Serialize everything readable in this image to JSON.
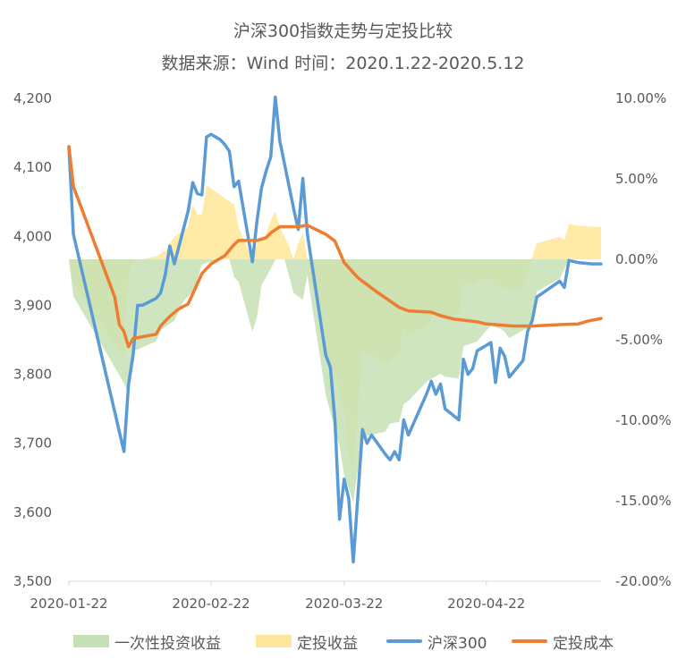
{
  "title": {
    "line1": "沪深300指数走势与定投比较",
    "line2": "数据来源：Wind 时间：2020.1.22-2020.5.12"
  },
  "colors": {
    "index_line": "#5B9BD5",
    "cost_line": "#ED7D31",
    "lump_sum_area": "#C5E0B4",
    "dca_area": "#FFE699",
    "axis": "#D9D9D9"
  },
  "legend": {
    "lump_sum": "一次性投资收益",
    "dca": "定投收益",
    "index": "沪深300",
    "cost": "定投成本"
  },
  "chart_data": {
    "type": "line",
    "title": "沪深300指数走势与定投比较",
    "subtitle": "数据来源：Wind 时间：2020.1.22-2020.5.12",
    "x_tick_labels": [
      "2020-01-22",
      "2020-02-22",
      "2020-03-22",
      "2020-04-22"
    ],
    "x_range": [
      "2020-01-22",
      "2020-05-12"
    ],
    "y_left": {
      "range": [
        3500,
        4200
      ],
      "ticks": [
        "3,500",
        "3,600",
        "3,700",
        "3,800",
        "3,900",
        "4,000",
        "4,100",
        "4,200"
      ]
    },
    "y_right": {
      "range": [
        -20,
        10
      ],
      "ticks": [
        "10.00%",
        "5.00%",
        "0.00%",
        "-5.00%",
        "-10.00%",
        "-15.00%",
        "-20.00%"
      ]
    },
    "series": [
      {
        "name": "沪深300",
        "axis": "left",
        "points": [
          [
            "2020-01-22",
            4130
          ],
          [
            "2020-01-23",
            4003
          ],
          [
            "2020-02-03",
            3688
          ],
          [
            "2020-02-04",
            3785
          ],
          [
            "2020-02-05",
            3828
          ],
          [
            "2020-02-06",
            3900
          ],
          [
            "2020-02-07",
            3900
          ],
          [
            "2020-02-10",
            3910
          ],
          [
            "2020-02-11",
            3918
          ],
          [
            "2020-02-12",
            3944
          ],
          [
            "2020-02-13",
            3986
          ],
          [
            "2020-02-14",
            3960
          ],
          [
            "2020-02-17",
            4037
          ],
          [
            "2020-02-18",
            4078
          ],
          [
            "2020-02-19",
            4062
          ],
          [
            "2020-02-20",
            4060
          ],
          [
            "2020-02-21",
            4144
          ],
          [
            "2020-02-22",
            4148
          ],
          [
            "2020-02-24",
            4140
          ],
          [
            "2020-02-25",
            4133
          ],
          [
            "2020-02-26",
            4123
          ],
          [
            "2020-02-27",
            4072
          ],
          [
            "2020-02-28",
            4080
          ],
          [
            "2020-03-02",
            3963
          ],
          [
            "2020-03-03",
            4022
          ],
          [
            "2020-03-04",
            4070
          ],
          [
            "2020-03-05",
            4095
          ],
          [
            "2020-03-06",
            4115
          ],
          [
            "2020-03-07",
            4202
          ],
          [
            "2020-03-08",
            4138
          ],
          [
            "2020-03-11",
            4040
          ],
          [
            "2020-03-12",
            4010
          ],
          [
            "2020-03-13",
            4084
          ],
          [
            "2020-03-14",
            4003
          ],
          [
            "2020-03-18",
            3828
          ],
          [
            "2020-03-19",
            3810
          ],
          [
            "2020-03-20",
            3733
          ],
          [
            "2020-03-21",
            3590
          ],
          [
            "2020-03-22",
            3648
          ],
          [
            "2020-03-23",
            3620
          ],
          [
            "2020-03-24",
            3528
          ],
          [
            "2020-03-26",
            3720
          ],
          [
            "2020-03-27",
            3700
          ],
          [
            "2020-03-28",
            3712
          ],
          [
            "2020-03-31",
            3684
          ],
          [
            "2020-04-01",
            3676
          ],
          [
            "2020-04-02",
            3688
          ],
          [
            "2020-04-03",
            3676
          ],
          [
            "2020-04-04",
            3734
          ],
          [
            "2020-04-05",
            3712
          ],
          [
            "2020-04-09",
            3772
          ],
          [
            "2020-04-10",
            3790
          ],
          [
            "2020-04-11",
            3771
          ],
          [
            "2020-04-12",
            3786
          ],
          [
            "2020-04-13",
            3750
          ],
          [
            "2020-04-16",
            3734
          ],
          [
            "2020-04-17",
            3822
          ],
          [
            "2020-04-18",
            3800
          ],
          [
            "2020-04-19",
            3808
          ],
          [
            "2020-04-20",
            3834
          ],
          [
            "2020-04-23",
            3846
          ],
          [
            "2020-04-24",
            3788
          ],
          [
            "2020-04-25",
            3838
          ],
          [
            "2020-04-26",
            3826
          ],
          [
            "2020-04-27",
            3796
          ],
          [
            "2020-04-30",
            3820
          ],
          [
            "2020-05-01",
            3862
          ],
          [
            "2020-05-02",
            3878
          ],
          [
            "2020-05-03",
            3912
          ],
          [
            "2020-05-08",
            3935
          ],
          [
            "2020-05-09",
            3926
          ],
          [
            "2020-05-10",
            3965
          ],
          [
            "2020-05-12",
            3962
          ],
          [
            "2020-05-15",
            3960
          ],
          [
            "2020-05-17",
            3960
          ]
        ]
      },
      {
        "name": "定投成本",
        "axis": "left",
        "points": [
          [
            "2020-01-22",
            4130
          ],
          [
            "2020-01-23",
            4072
          ],
          [
            "2020-02-01",
            3912
          ],
          [
            "2020-02-02",
            3872
          ],
          [
            "2020-02-03",
            3862
          ],
          [
            "2020-02-04",
            3840
          ],
          [
            "2020-02-05",
            3852
          ],
          [
            "2020-02-10",
            3858
          ],
          [
            "2020-02-11",
            3870
          ],
          [
            "2020-02-13",
            3884
          ],
          [
            "2020-02-15",
            3895
          ],
          [
            "2020-02-17",
            3902
          ],
          [
            "2020-02-20",
            3946
          ],
          [
            "2020-02-22",
            3960
          ],
          [
            "2020-02-25",
            3972
          ],
          [
            "2020-02-27",
            3988
          ],
          [
            "2020-02-28",
            3994
          ],
          [
            "2020-03-03",
            3994
          ],
          [
            "2020-03-05",
            3998
          ],
          [
            "2020-03-06",
            4005
          ],
          [
            "2020-03-08",
            4014
          ],
          [
            "2020-03-12",
            4014
          ],
          [
            "2020-03-14",
            4016
          ],
          [
            "2020-03-18",
            4003
          ],
          [
            "2020-03-20",
            3993
          ],
          [
            "2020-03-22",
            3962
          ],
          [
            "2020-03-25",
            3940
          ],
          [
            "2020-03-27",
            3930
          ],
          [
            "2020-03-29",
            3920
          ],
          [
            "2020-04-03",
            3897
          ],
          [
            "2020-04-05",
            3892
          ],
          [
            "2020-04-10",
            3890
          ],
          [
            "2020-04-12",
            3885
          ],
          [
            "2020-04-15",
            3880
          ],
          [
            "2020-04-20",
            3876
          ],
          [
            "2020-04-22",
            3873
          ],
          [
            "2020-04-28",
            3870
          ],
          [
            "2020-05-02",
            3870
          ],
          [
            "2020-05-08",
            3872
          ],
          [
            "2020-05-12",
            3873
          ],
          [
            "2020-05-14",
            3877
          ],
          [
            "2020-05-17",
            3881
          ]
        ]
      },
      {
        "name": "一次性投资收益",
        "axis": "right",
        "unit": "%",
        "points": [
          [
            "2020-01-22",
            0.0
          ],
          [
            "2020-01-23",
            -2.3
          ],
          [
            "2020-02-03",
            -7.7
          ],
          [
            "2020-02-04",
            -8.3
          ],
          [
            "2020-02-05",
            -5.7
          ],
          [
            "2020-02-06",
            -5.6
          ],
          [
            "2020-02-10",
            -5.1
          ],
          [
            "2020-02-11",
            -4.4
          ],
          [
            "2020-02-14",
            -3.8
          ],
          [
            "2020-02-16",
            -2.6
          ],
          [
            "2020-02-18",
            -2.0
          ],
          [
            "2020-02-19",
            -1.3
          ],
          [
            "2020-02-20",
            -0.3
          ],
          [
            "2020-02-24",
            0.0
          ],
          [
            "2020-02-26",
            0.0
          ],
          [
            "2020-02-27",
            -1.1
          ],
          [
            "2020-02-28",
            -1.4
          ],
          [
            "2020-03-02",
            -4.5
          ],
          [
            "2020-03-03",
            -3.6
          ],
          [
            "2020-03-04",
            -1.6
          ],
          [
            "2020-03-06",
            -0.6
          ],
          [
            "2020-03-07",
            0.0
          ],
          [
            "2020-03-09",
            0.0
          ],
          [
            "2020-03-11",
            -2.1
          ],
          [
            "2020-03-13",
            -2.5
          ],
          [
            "2020-03-14",
            -1.0
          ],
          [
            "2020-03-18",
            -8.4
          ],
          [
            "2020-03-20",
            -10.6
          ],
          [
            "2020-03-21",
            -11.6
          ],
          [
            "2020-03-22",
            -13.4
          ],
          [
            "2020-03-23",
            -14.2
          ],
          [
            "2020-03-24",
            -15.1
          ],
          [
            "2020-03-26",
            -11.0
          ],
          [
            "2020-03-28",
            -10.9
          ],
          [
            "2020-03-31",
            -10.7
          ],
          [
            "2020-04-01",
            -10.2
          ],
          [
            "2020-04-03",
            -10.1
          ],
          [
            "2020-04-04",
            -9.0
          ],
          [
            "2020-04-05",
            -8.8
          ],
          [
            "2020-04-09",
            -7.6
          ],
          [
            "2020-04-12",
            -7.1
          ],
          [
            "2020-04-13",
            -7.3
          ],
          [
            "2020-04-16",
            -7.4
          ],
          [
            "2020-04-17",
            -5.4
          ],
          [
            "2020-04-20",
            -5.1
          ],
          [
            "2020-04-23",
            -4.1
          ],
          [
            "2020-04-25",
            -4.3
          ],
          [
            "2020-04-26",
            -4.5
          ],
          [
            "2020-04-27",
            -4.9
          ],
          [
            "2020-04-30",
            -4.4
          ],
          [
            "2020-05-02",
            -4.2
          ],
          [
            "2020-05-03",
            -2.0
          ],
          [
            "2020-05-08",
            -1.2
          ],
          [
            "2020-05-10",
            0.0
          ],
          [
            "2020-05-17",
            0.0
          ]
        ]
      },
      {
        "name": "定投收益",
        "axis": "right",
        "unit": "%",
        "points": [
          [
            "2020-01-22",
            0.0
          ],
          [
            "2020-01-23",
            -1.5
          ],
          [
            "2020-02-03",
            -6.1
          ],
          [
            "2020-02-04",
            -1.0
          ],
          [
            "2020-02-05",
            0.0
          ],
          [
            "2020-02-07",
            0.0
          ],
          [
            "2020-02-10",
            0.2
          ],
          [
            "2020-02-12",
            0.5
          ],
          [
            "2020-02-14",
            1.4
          ],
          [
            "2020-02-17",
            2.0
          ],
          [
            "2020-02-18",
            3.4
          ],
          [
            "2020-02-19",
            2.8
          ],
          [
            "2020-02-20",
            2.8
          ],
          [
            "2020-02-21",
            4.6
          ],
          [
            "2020-02-24",
            4.0
          ],
          [
            "2020-02-25",
            3.8
          ],
          [
            "2020-02-27",
            3.4
          ],
          [
            "2020-02-28",
            2.0
          ],
          [
            "2020-03-01",
            0.7
          ],
          [
            "2020-03-02",
            0.0
          ],
          [
            "2020-03-03",
            1.0
          ],
          [
            "2020-03-05",
            1.6
          ],
          [
            "2020-03-06",
            2.4
          ],
          [
            "2020-03-07",
            3.0
          ],
          [
            "2020-03-08",
            2.0
          ],
          [
            "2020-03-10",
            0.8
          ],
          [
            "2020-03-11",
            0.0
          ],
          [
            "2020-03-12",
            1.0
          ],
          [
            "2020-03-13",
            1.6
          ],
          [
            "2020-03-14",
            0.0
          ],
          [
            "2020-03-18",
            -6.0
          ],
          [
            "2020-03-20",
            -7.0
          ],
          [
            "2020-03-21",
            -8.6
          ],
          [
            "2020-03-22",
            -9.3
          ],
          [
            "2020-03-23",
            -12.2
          ],
          [
            "2020-03-24",
            -13.0
          ],
          [
            "2020-03-26",
            -5.7
          ],
          [
            "2020-03-28",
            -5.9
          ],
          [
            "2020-03-31",
            -6.6
          ],
          [
            "2020-04-01",
            -6.2
          ],
          [
            "2020-04-03",
            -5.9
          ],
          [
            "2020-04-04",
            -4.2
          ],
          [
            "2020-04-05",
            -4.8
          ],
          [
            "2020-04-09",
            -4.1
          ],
          [
            "2020-04-11",
            -3.3
          ],
          [
            "2020-04-12",
            -3.6
          ],
          [
            "2020-04-13",
            -3.7
          ],
          [
            "2020-04-16",
            -3.4
          ],
          [
            "2020-04-17",
            -1.4
          ],
          [
            "2020-04-19",
            -1.6
          ],
          [
            "2020-04-20",
            -1.3
          ],
          [
            "2020-04-23",
            -1.2
          ],
          [
            "2020-04-24",
            -1.6
          ],
          [
            "2020-04-25",
            -1.8
          ],
          [
            "2020-04-26",
            -1.7
          ],
          [
            "2020-04-27",
            -2.1
          ],
          [
            "2020-04-30",
            -1.7
          ],
          [
            "2020-05-01",
            -0.8
          ],
          [
            "2020-05-03",
            1.0
          ],
          [
            "2020-05-08",
            1.4
          ],
          [
            "2020-05-09",
            1.2
          ],
          [
            "2020-05-10",
            2.2
          ],
          [
            "2020-05-12",
            2.1
          ],
          [
            "2020-05-17",
            2.0
          ]
        ]
      }
    ]
  }
}
